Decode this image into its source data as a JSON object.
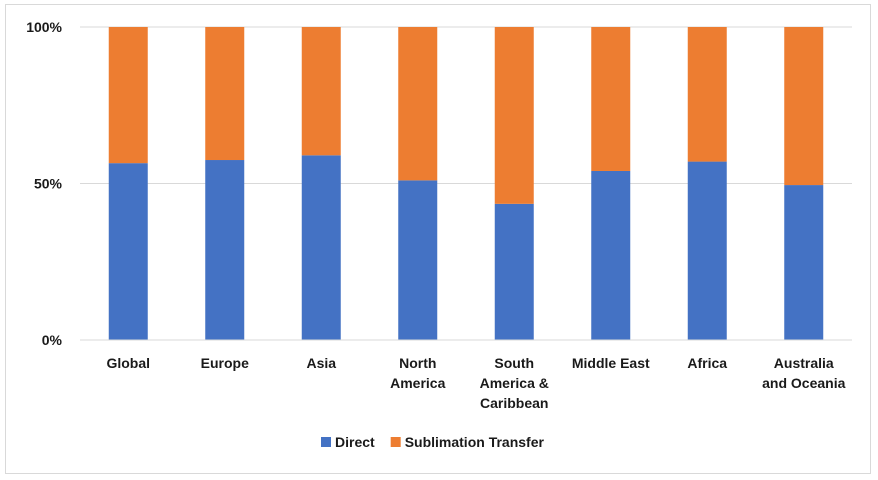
{
  "chart_data": {
    "type": "bar",
    "stacked": true,
    "percent_scale": true,
    "title": "",
    "xlabel": "",
    "ylabel": "",
    "ylim": [
      0,
      100
    ],
    "yticks": [
      "0%",
      "50%",
      "100%"
    ],
    "ytick_values": [
      0,
      50,
      100
    ],
    "grid": true,
    "legend_position": "bottom",
    "categories": [
      [
        "Global"
      ],
      [
        "Europe"
      ],
      [
        "Asia"
      ],
      [
        "North",
        "America"
      ],
      [
        "South",
        "America &",
        "Caribbean"
      ],
      [
        "Middle East"
      ],
      [
        "Africa"
      ],
      [
        "Australia",
        "and Oceania"
      ]
    ],
    "series": [
      {
        "name": "Direct",
        "color": "#4472C4",
        "values": [
          56.5,
          57.5,
          59,
          51,
          43.5,
          54,
          57,
          49.5
        ]
      },
      {
        "name": "Sublimation Transfer",
        "color": "#ED7D31",
        "values": [
          43.5,
          42.5,
          41,
          49,
          56.5,
          46,
          43,
          50.5
        ]
      }
    ]
  }
}
